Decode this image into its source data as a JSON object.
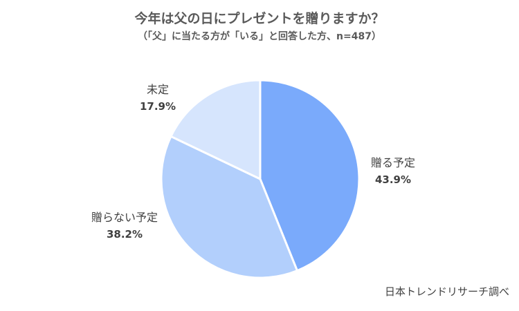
{
  "title": "今年は父の日にプレゼントを贈りますか？",
  "subtitle": "（「父」に当たる方が「いる」と回答した方、n=487）",
  "source": "日本トレンドリサーチ調べ",
  "chart_data": {
    "type": "pie",
    "title": "今年は父の日にプレゼントを贈りますか？",
    "slices": [
      {
        "label": "贈る予定",
        "value": 43.9,
        "value_label": "43.9%",
        "color": "#7aaafb"
      },
      {
        "label": "贈らない予定",
        "value": 38.2,
        "value_label": "38.2%",
        "color": "#b2cffc"
      },
      {
        "label": "未定",
        "value": 17.9,
        "value_label": "17.9%",
        "color": "#d6e5fd"
      }
    ],
    "start": "top",
    "direction": "clockwise",
    "slice_border_color": "#ffffff"
  }
}
